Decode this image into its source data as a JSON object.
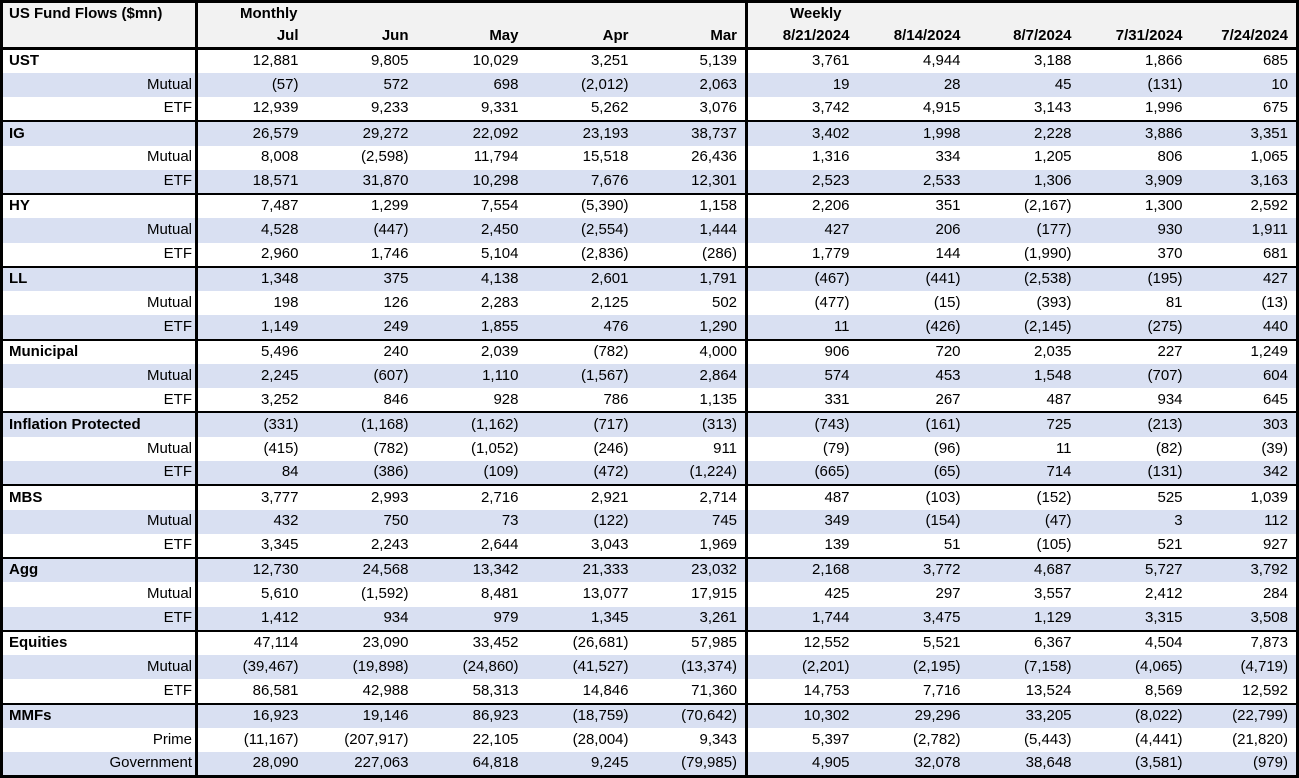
{
  "table": {
    "title": "US Fund Flows ($mn)",
    "sections": {
      "monthly": "Monthly",
      "weekly": "Weekly"
    },
    "monthly_columns": [
      "Jul",
      "Jun",
      "May",
      "Apr",
      "Mar"
    ],
    "weekly_columns": [
      "8/21/2024",
      "8/14/2024",
      "8/7/2024",
      "7/31/2024",
      "7/24/2024"
    ],
    "groups": [
      {
        "name": "UST",
        "total": {
          "monthly": [
            "12,881",
            "9,805",
            "10,029",
            "3,251",
            "5,139"
          ],
          "weekly": [
            "3,761",
            "4,944",
            "3,188",
            "1,866",
            "685"
          ]
        },
        "rows": [
          {
            "label": "Mutual",
            "monthly": [
              "(57)",
              "572",
              "698",
              "(2,012)",
              "2,063"
            ],
            "weekly": [
              "19",
              "28",
              "45",
              "(131)",
              "10"
            ]
          },
          {
            "label": "ETF",
            "monthly": [
              "12,939",
              "9,233",
              "9,331",
              "5,262",
              "3,076"
            ],
            "weekly": [
              "3,742",
              "4,915",
              "3,143",
              "1,996",
              "675"
            ]
          }
        ]
      },
      {
        "name": "IG",
        "total": {
          "monthly": [
            "26,579",
            "29,272",
            "22,092",
            "23,193",
            "38,737"
          ],
          "weekly": [
            "3,402",
            "1,998",
            "2,228",
            "3,886",
            "3,351"
          ]
        },
        "rows": [
          {
            "label": "Mutual",
            "monthly": [
              "8,008",
              "(2,598)",
              "11,794",
              "15,518",
              "26,436"
            ],
            "weekly": [
              "1,316",
              "334",
              "1,205",
              "806",
              "1,065"
            ]
          },
          {
            "label": "ETF",
            "monthly": [
              "18,571",
              "31,870",
              "10,298",
              "7,676",
              "12,301"
            ],
            "weekly": [
              "2,523",
              "2,533",
              "1,306",
              "3,909",
              "3,163"
            ]
          }
        ]
      },
      {
        "name": "HY",
        "total": {
          "monthly": [
            "7,487",
            "1,299",
            "7,554",
            "(5,390)",
            "1,158"
          ],
          "weekly": [
            "2,206",
            "351",
            "(2,167)",
            "1,300",
            "2,592"
          ]
        },
        "rows": [
          {
            "label": "Mutual",
            "monthly": [
              "4,528",
              "(447)",
              "2,450",
              "(2,554)",
              "1,444"
            ],
            "weekly": [
              "427",
              "206",
              "(177)",
              "930",
              "1,911"
            ]
          },
          {
            "label": "ETF",
            "monthly": [
              "2,960",
              "1,746",
              "5,104",
              "(2,836)",
              "(286)"
            ],
            "weekly": [
              "1,779",
              "144",
              "(1,990)",
              "370",
              "681"
            ]
          }
        ]
      },
      {
        "name": "LL",
        "total": {
          "monthly": [
            "1,348",
            "375",
            "4,138",
            "2,601",
            "1,791"
          ],
          "weekly": [
            "(467)",
            "(441)",
            "(2,538)",
            "(195)",
            "427"
          ]
        },
        "rows": [
          {
            "label": "Mutual",
            "monthly": [
              "198",
              "126",
              "2,283",
              "2,125",
              "502"
            ],
            "weekly": [
              "(477)",
              "(15)",
              "(393)",
              "81",
              "(13)"
            ]
          },
          {
            "label": "ETF",
            "monthly": [
              "1,149",
              "249",
              "1,855",
              "476",
              "1,290"
            ],
            "weekly": [
              "11",
              "(426)",
              "(2,145)",
              "(275)",
              "440"
            ]
          }
        ]
      },
      {
        "name": "Municipal",
        "total": {
          "monthly": [
            "5,496",
            "240",
            "2,039",
            "(782)",
            "4,000"
          ],
          "weekly": [
            "906",
            "720",
            "2,035",
            "227",
            "1,249"
          ]
        },
        "rows": [
          {
            "label": "Mutual",
            "monthly": [
              "2,245",
              "(607)",
              "1,110",
              "(1,567)",
              "2,864"
            ],
            "weekly": [
              "574",
              "453",
              "1,548",
              "(707)",
              "604"
            ]
          },
          {
            "label": "ETF",
            "monthly": [
              "3,252",
              "846",
              "928",
              "786",
              "1,135"
            ],
            "weekly": [
              "331",
              "267",
              "487",
              "934",
              "645"
            ]
          }
        ]
      },
      {
        "name": "Inflation Protected",
        "total": {
          "monthly": [
            "(331)",
            "(1,168)",
            "(1,162)",
            "(717)",
            "(313)"
          ],
          "weekly": [
            "(743)",
            "(161)",
            "725",
            "(213)",
            "303"
          ]
        },
        "rows": [
          {
            "label": "Mutual",
            "monthly": [
              "(415)",
              "(782)",
              "(1,052)",
              "(246)",
              "911"
            ],
            "weekly": [
              "(79)",
              "(96)",
              "11",
              "(82)",
              "(39)"
            ]
          },
          {
            "label": "ETF",
            "monthly": [
              "84",
              "(386)",
              "(109)",
              "(472)",
              "(1,224)"
            ],
            "weekly": [
              "(665)",
              "(65)",
              "714",
              "(131)",
              "342"
            ]
          }
        ]
      },
      {
        "name": "MBS",
        "total": {
          "monthly": [
            "3,777",
            "2,993",
            "2,716",
            "2,921",
            "2,714"
          ],
          "weekly": [
            "487",
            "(103)",
            "(152)",
            "525",
            "1,039"
          ]
        },
        "rows": [
          {
            "label": "Mutual",
            "monthly": [
              "432",
              "750",
              "73",
              "(122)",
              "745"
            ],
            "weekly": [
              "349",
              "(154)",
              "(47)",
              "3",
              "112"
            ]
          },
          {
            "label": "ETF",
            "monthly": [
              "3,345",
              "2,243",
              "2,644",
              "3,043",
              "1,969"
            ],
            "weekly": [
              "139",
              "51",
              "(105)",
              "521",
              "927"
            ]
          }
        ]
      },
      {
        "name": "Agg",
        "total": {
          "monthly": [
            "12,730",
            "24,568",
            "13,342",
            "21,333",
            "23,032"
          ],
          "weekly": [
            "2,168",
            "3,772",
            "4,687",
            "5,727",
            "3,792"
          ]
        },
        "rows": [
          {
            "label": "Mutual",
            "monthly": [
              "5,610",
              "(1,592)",
              "8,481",
              "13,077",
              "17,915"
            ],
            "weekly": [
              "425",
              "297",
              "3,557",
              "2,412",
              "284"
            ]
          },
          {
            "label": "ETF",
            "monthly": [
              "1,412",
              "934",
              "979",
              "1,345",
              "3,261"
            ],
            "weekly": [
              "1,744",
              "3,475",
              "1,129",
              "3,315",
              "3,508"
            ]
          }
        ]
      },
      {
        "name": "Equities",
        "total": {
          "monthly": [
            "47,114",
            "23,090",
            "33,452",
            "(26,681)",
            "57,985"
          ],
          "weekly": [
            "12,552",
            "5,521",
            "6,367",
            "4,504",
            "7,873"
          ]
        },
        "rows": [
          {
            "label": "Mutual",
            "monthly": [
              "(39,467)",
              "(19,898)",
              "(24,860)",
              "(41,527)",
              "(13,374)"
            ],
            "weekly": [
              "(2,201)",
              "(2,195)",
              "(7,158)",
              "(4,065)",
              "(4,719)"
            ]
          },
          {
            "label": "ETF",
            "monthly": [
              "86,581",
              "42,988",
              "58,313",
              "14,846",
              "71,360"
            ],
            "weekly": [
              "14,753",
              "7,716",
              "13,524",
              "8,569",
              "12,592"
            ]
          }
        ]
      },
      {
        "name": "MMFs",
        "total": {
          "monthly": [
            "16,923",
            "19,146",
            "86,923",
            "(18,759)",
            "(70,642)"
          ],
          "weekly": [
            "10,302",
            "29,296",
            "33,205",
            "(8,022)",
            "(22,799)"
          ]
        },
        "rows": [
          {
            "label": "Prime",
            "monthly": [
              "(11,167)",
              "(207,917)",
              "22,105",
              "(28,004)",
              "9,343"
            ],
            "weekly": [
              "5,397",
              "(2,782)",
              "(5,443)",
              "(4,441)",
              "(21,820)"
            ]
          },
          {
            "label": "Government",
            "monthly": [
              "28,090",
              "227,063",
              "64,818",
              "9,245",
              "(79,985)"
            ],
            "weekly": [
              "4,905",
              "32,078",
              "38,648",
              "(3,581)",
              "(979)"
            ]
          }
        ]
      }
    ]
  },
  "colors": {
    "band_blue": "#d9e0f2",
    "header_gray": "#f2f2f2",
    "border_black": "#000000",
    "text_black": "#000000",
    "row_white": "#ffffff"
  }
}
